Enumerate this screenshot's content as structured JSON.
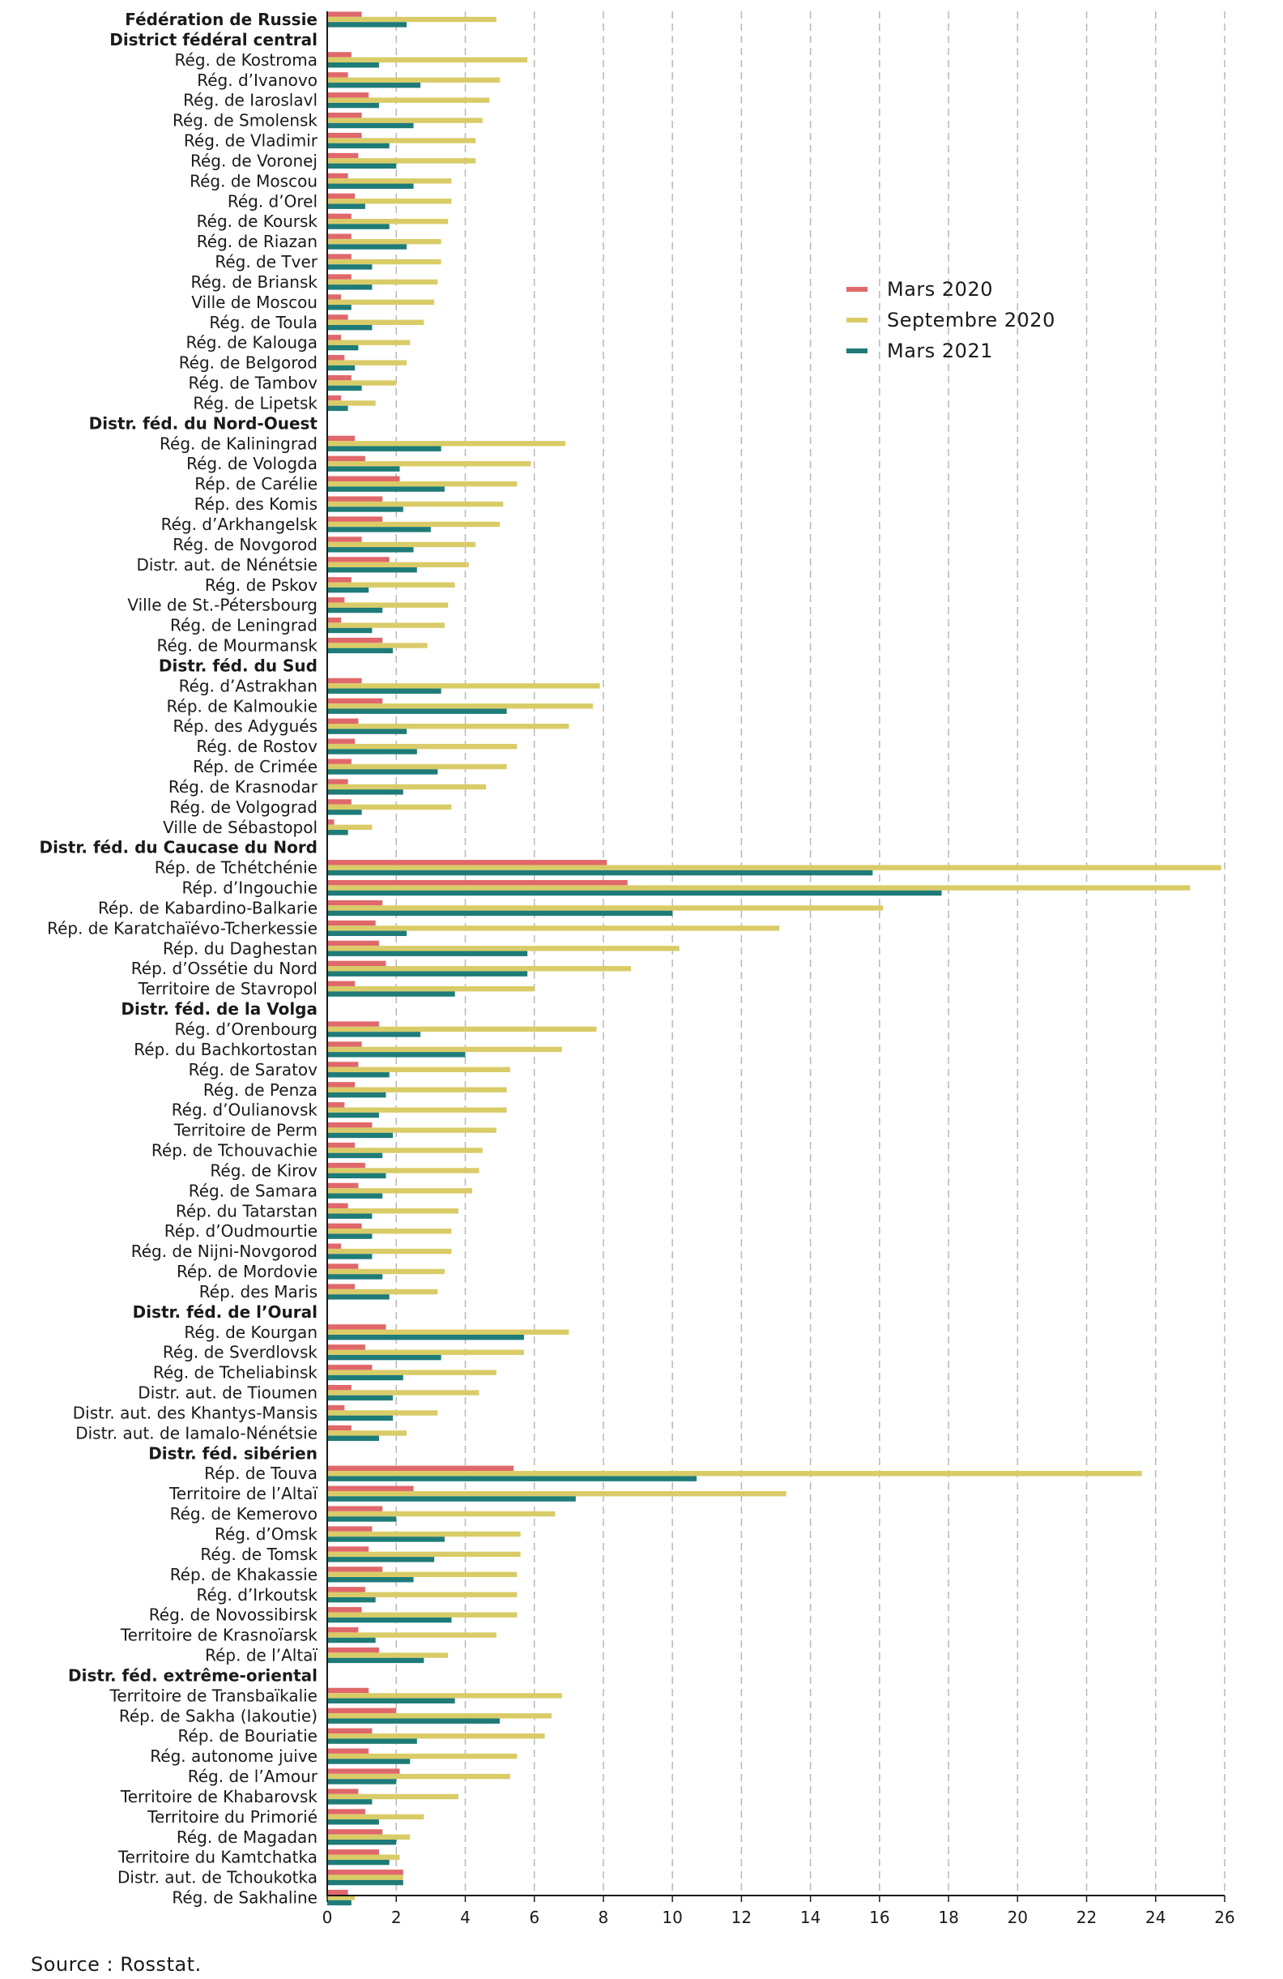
{
  "source": "Source : Rosstat.",
  "chart_data": {
    "type": "bar",
    "orientation": "horizontal",
    "xlim": [
      0,
      26
    ],
    "xticks": [
      "0",
      "2",
      "4",
      "6",
      "8",
      "10",
      "12",
      "14",
      "16",
      "18",
      "20",
      "22",
      "24",
      "26"
    ],
    "grid": "vertical dashed",
    "legend_position": "upper-right",
    "series": [
      {
        "name": "Mars 2020",
        "color": "#e0686a"
      },
      {
        "name": "Septembre 2020",
        "color": "#d9cc68"
      },
      {
        "name": "Mars 2021",
        "color": "#1e7b78"
      }
    ],
    "categories": [
      {
        "label": "Fédération de Russie",
        "header": true,
        "values": [
          1.0,
          4.9,
          2.3
        ]
      },
      {
        "label": "District fédéral central",
        "header": true,
        "values": null
      },
      {
        "label": "Rég. de Kostroma",
        "values": [
          0.7,
          5.8,
          1.5
        ]
      },
      {
        "label": "Rég. d’Ivanovo",
        "values": [
          0.6,
          5.0,
          2.7
        ]
      },
      {
        "label": "Rég. de Iaroslavl",
        "values": [
          1.2,
          4.7,
          1.5
        ]
      },
      {
        "label": "Rég. de Smolensk",
        "values": [
          1.0,
          4.5,
          2.5
        ]
      },
      {
        "label": "Rég. de Vladimir",
        "values": [
          1.0,
          4.3,
          1.8
        ]
      },
      {
        "label": "Rég. de Voronej",
        "values": [
          0.9,
          4.3,
          2.0
        ]
      },
      {
        "label": "Rég. de Moscou",
        "values": [
          0.6,
          3.6,
          2.5
        ]
      },
      {
        "label": "Rég. d’Orel",
        "values": [
          0.8,
          3.6,
          1.1
        ]
      },
      {
        "label": "Rég. de Koursk",
        "values": [
          0.7,
          3.5,
          1.8
        ]
      },
      {
        "label": "Rég. de Riazan",
        "values": [
          0.7,
          3.3,
          2.3
        ]
      },
      {
        "label": "Rég. de Tver",
        "values": [
          0.7,
          3.3,
          1.3
        ]
      },
      {
        "label": "Rég. de Briansk",
        "values": [
          0.7,
          3.2,
          1.3
        ]
      },
      {
        "label": "Ville de Moscou",
        "values": [
          0.4,
          3.1,
          0.7
        ]
      },
      {
        "label": "Rég. de Toula",
        "values": [
          0.6,
          2.8,
          1.3
        ]
      },
      {
        "label": "Rég. de Kalouga",
        "values": [
          0.4,
          2.4,
          0.9
        ]
      },
      {
        "label": "Rég. de Belgorod",
        "values": [
          0.5,
          2.3,
          0.8
        ]
      },
      {
        "label": "Rég. de Tambov",
        "values": [
          0.7,
          2.0,
          1.0
        ]
      },
      {
        "label": "Rég. de Lipetsk",
        "values": [
          0.4,
          1.4,
          0.6
        ]
      },
      {
        "label": "Distr. féd. du Nord-Ouest",
        "header": true,
        "values": null
      },
      {
        "label": "Rég. de Kaliningrad",
        "values": [
          0.8,
          6.9,
          3.3
        ]
      },
      {
        "label": "Rég. de Vologda",
        "values": [
          1.1,
          5.9,
          2.1
        ]
      },
      {
        "label": "Rép. de Carélie",
        "values": [
          2.1,
          5.5,
          3.4
        ]
      },
      {
        "label": "Rép. des Komis",
        "values": [
          1.6,
          5.1,
          2.2
        ]
      },
      {
        "label": "Rég. d’Arkhangelsk",
        "values": [
          1.6,
          5.0,
          3.0
        ]
      },
      {
        "label": "Rég. de Novgorod",
        "values": [
          1.0,
          4.3,
          2.5
        ]
      },
      {
        "label": "Distr. aut. de Nénétsie",
        "values": [
          1.8,
          4.1,
          2.6
        ]
      },
      {
        "label": "Rég. de Pskov",
        "values": [
          0.7,
          3.7,
          1.2
        ]
      },
      {
        "label": "Ville de St.-Pétersbourg",
        "values": [
          0.5,
          3.5,
          1.6
        ]
      },
      {
        "label": "Rég. de Leningrad",
        "values": [
          0.4,
          3.4,
          1.3
        ]
      },
      {
        "label": "Rég. de Mourmansk",
        "values": [
          1.6,
          2.9,
          1.9
        ]
      },
      {
        "label": "Distr. féd. du Sud",
        "header": true,
        "values": null
      },
      {
        "label": "Rég. d’Astrakhan",
        "values": [
          1.0,
          7.9,
          3.3
        ]
      },
      {
        "label": "Rép. de Kalmoukie",
        "values": [
          1.6,
          7.7,
          5.2
        ]
      },
      {
        "label": "Rép. des Adygués",
        "values": [
          0.9,
          7.0,
          2.3
        ]
      },
      {
        "label": "Rég. de Rostov",
        "values": [
          0.8,
          5.5,
          2.6
        ]
      },
      {
        "label": "Rép. de Crimée",
        "values": [
          0.7,
          5.2,
          3.2
        ]
      },
      {
        "label": "Rég. de Krasnodar",
        "values": [
          0.6,
          4.6,
          2.2
        ]
      },
      {
        "label": "Rég. de Volgograd",
        "values": [
          0.7,
          3.6,
          1.0
        ]
      },
      {
        "label": "Ville de Sébastopol",
        "values": [
          0.2,
          1.3,
          0.6
        ]
      },
      {
        "label": "Distr. féd. du Caucase du Nord",
        "header": true,
        "values": null
      },
      {
        "label": "Rép. de Tchétchénie",
        "values": [
          8.1,
          25.9,
          15.8
        ]
      },
      {
        "label": "Rép. d’Ingouchie",
        "values": [
          8.7,
          25.0,
          17.8
        ]
      },
      {
        "label": "Rép. de Kabardino-Balkarie",
        "values": [
          1.6,
          16.1,
          10.0
        ]
      },
      {
        "label": "Rép. de Karatchaïévo-Tcherkessie",
        "values": [
          1.4,
          13.1,
          2.3
        ]
      },
      {
        "label": "Rép. du Daghestan",
        "values": [
          1.5,
          10.2,
          5.8
        ]
      },
      {
        "label": "Rép. d’Ossétie du Nord",
        "values": [
          1.7,
          8.8,
          5.8
        ]
      },
      {
        "label": "Territoire de Stavropol",
        "values": [
          0.8,
          6.0,
          3.7
        ]
      },
      {
        "label": "Distr. féd. de la Volga",
        "header": true,
        "values": null
      },
      {
        "label": "Rég. d’Orenbourg",
        "values": [
          1.5,
          7.8,
          2.7
        ]
      },
      {
        "label": "Rép. du Bachkortostan",
        "values": [
          1.0,
          6.8,
          4.0
        ]
      },
      {
        "label": "Rég. de Saratov",
        "values": [
          0.9,
          5.3,
          1.8
        ]
      },
      {
        "label": "Rég. de Penza",
        "values": [
          0.8,
          5.2,
          1.7
        ]
      },
      {
        "label": "Rég. d’Oulianovsk",
        "values": [
          0.5,
          5.2,
          1.5
        ]
      },
      {
        "label": "Territoire de Perm",
        "values": [
          1.3,
          4.9,
          1.9
        ]
      },
      {
        "label": "Rép. de Tchouvachie",
        "values": [
          0.8,
          4.5,
          1.6
        ]
      },
      {
        "label": "Rég. de Kirov",
        "values": [
          1.1,
          4.4,
          1.7
        ]
      },
      {
        "label": "Rég. de Samara",
        "values": [
          0.9,
          4.2,
          1.6
        ]
      },
      {
        "label": "Rép. du Tatarstan",
        "values": [
          0.6,
          3.8,
          1.3
        ]
      },
      {
        "label": "Rép. d’Oudmourtie",
        "values": [
          1.0,
          3.6,
          1.3
        ]
      },
      {
        "label": "Rég. de Nijni-Novgorod",
        "values": [
          0.4,
          3.6,
          1.3
        ]
      },
      {
        "label": "Rép. de Mordovie",
        "values": [
          0.9,
          3.4,
          1.6
        ]
      },
      {
        "label": "Rép. des Maris",
        "values": [
          0.8,
          3.2,
          1.8
        ]
      },
      {
        "label": "Distr. féd. de l’Oural",
        "header": true,
        "values": null
      },
      {
        "label": "Rég. de Kourgan",
        "values": [
          1.7,
          7.0,
          5.7
        ]
      },
      {
        "label": "Rég. de Sverdlovsk",
        "values": [
          1.1,
          5.7,
          3.3
        ]
      },
      {
        "label": "Rég. de Tcheliabinsk",
        "values": [
          1.3,
          4.9,
          2.2
        ]
      },
      {
        "label": "Distr. aut. de Tioumen",
        "values": [
          0.7,
          4.4,
          1.9
        ]
      },
      {
        "label": "Distr. aut. des Khantys-Mansis",
        "values": [
          0.5,
          3.2,
          1.9
        ]
      },
      {
        "label": "Distr. aut. de Iamalo-Nénétsie",
        "values": [
          0.7,
          2.3,
          1.5
        ]
      },
      {
        "label": "Distr. féd. sibérien",
        "header": true,
        "values": null
      },
      {
        "label": "Rép. de Touva",
        "values": [
          5.4,
          23.6,
          10.7
        ]
      },
      {
        "label": "Territoire de l’Altaï",
        "values": [
          2.5,
          13.3,
          7.2
        ]
      },
      {
        "label": "Rég. de Kemerovo",
        "values": [
          1.6,
          6.6,
          2.0
        ]
      },
      {
        "label": "Rég. d’Omsk",
        "values": [
          1.3,
          5.6,
          3.4
        ]
      },
      {
        "label": "Rég. de Tomsk",
        "values": [
          1.2,
          5.6,
          3.1
        ]
      },
      {
        "label": "Rép. de Khakassie",
        "values": [
          1.6,
          5.5,
          2.5
        ]
      },
      {
        "label": "Rég. d’Irkoutsk",
        "values": [
          1.1,
          5.5,
          1.4
        ]
      },
      {
        "label": "Rég. de Novossibirsk",
        "values": [
          1.0,
          5.5,
          3.6
        ]
      },
      {
        "label": "Territoire de Krasnoïarsk",
        "values": [
          0.9,
          4.9,
          1.4
        ]
      },
      {
        "label": "Rép. de l’Altaï",
        "values": [
          1.5,
          3.5,
          2.8
        ]
      },
      {
        "label": "Distr. féd. extrême-oriental",
        "header": true,
        "values": null
      },
      {
        "label": "Territoire de Transbaïkalie",
        "values": [
          1.2,
          6.8,
          3.7
        ]
      },
      {
        "label": "Rép. de Sakha (Iakoutie)",
        "values": [
          2.0,
          6.5,
          5.0
        ]
      },
      {
        "label": "Rép. de Bouriatie",
        "values": [
          1.3,
          6.3,
          2.6
        ]
      },
      {
        "label": "Rég. autonome juive",
        "values": [
          1.2,
          5.5,
          2.4
        ]
      },
      {
        "label": "Rég. de l’Amour",
        "values": [
          2.1,
          5.3,
          2.0
        ]
      },
      {
        "label": "Territoire de Khabarovsk",
        "values": [
          0.9,
          3.8,
          1.3
        ]
      },
      {
        "label": "Territoire du Primorié",
        "values": [
          1.1,
          2.8,
          1.5
        ]
      },
      {
        "label": "Rég. de Magadan",
        "values": [
          1.6,
          2.4,
          2.0
        ]
      },
      {
        "label": "Territoire du Kamtchatka",
        "values": [
          1.5,
          2.1,
          1.8
        ]
      },
      {
        "label": "Distr. aut. de Tchoukotka",
        "values": [
          2.2,
          2.2,
          2.2
        ]
      },
      {
        "label": "Rég. de Sakhaline",
        "values": [
          0.6,
          0.8,
          0.7
        ]
      }
    ]
  }
}
